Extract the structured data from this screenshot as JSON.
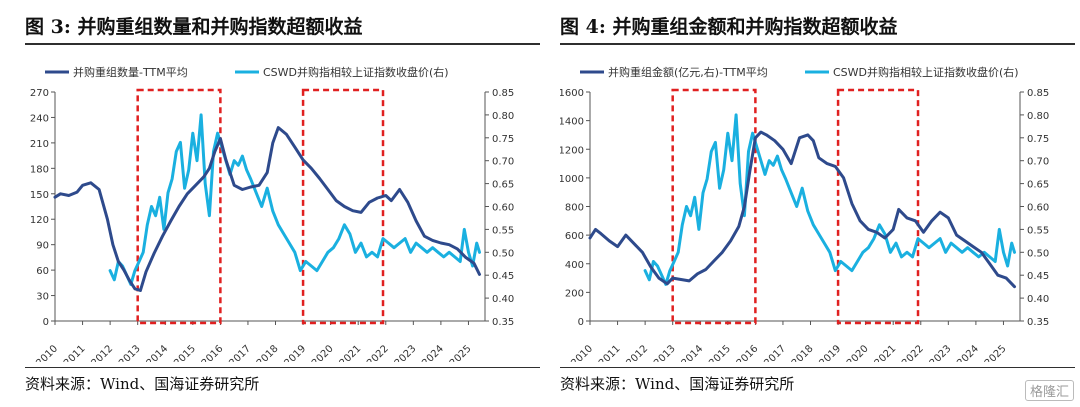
{
  "left": {
    "title": "图 3:  并购重组数量和并购指数超额收益",
    "source": "资料来源：Wind、国海证券研究所"
  },
  "right": {
    "title": "图 4:  并购重组金额和并购指数超额收益",
    "source": "资料来源：Wind、国海证券研究所"
  },
  "watermark": "格隆汇",
  "chart_data": [
    {
      "type": "line",
      "x_ticks": [
        "2010",
        "2011",
        "2012",
        "2013",
        "2014",
        "2015",
        "2016",
        "2017",
        "2018",
        "2019",
        "2020",
        "2021",
        "2022",
        "2023",
        "2024",
        "2025"
      ],
      "ylim": [
        0,
        270
      ],
      "yticks": [
        0,
        30,
        60,
        90,
        120,
        150,
        180,
        210,
        240,
        270
      ],
      "y2lim": [
        0.35,
        0.85
      ],
      "y2ticks": [
        "0.35",
        "0.40",
        "0.45",
        "0.50",
        "0.55",
        "0.60",
        "0.65",
        "0.70",
        "0.75",
        "0.80",
        "0.85"
      ],
      "legend_position": "top",
      "highlight_periods": [
        [
          2013.0,
          2016.0
        ],
        [
          2019.0,
          2021.9
        ]
      ],
      "series": [
        {
          "name": "并购重组数量-TTM平均",
          "axis": "left",
          "color": "#2e4a8c",
          "x": [
            2010,
            2010.2,
            2010.5,
            2010.8,
            2011,
            2011.3,
            2011.6,
            2011.9,
            2012.1,
            2012.3,
            2012.5,
            2012.7,
            2012.9,
            2013.1,
            2013.3,
            2013.6,
            2013.9,
            2014.2,
            2014.5,
            2014.8,
            2015.1,
            2015.4,
            2015.6,
            2015.8,
            2016.0,
            2016.2,
            2016.5,
            2016.8,
            2017.1,
            2017.4,
            2017.7,
            2017.9,
            2018.1,
            2018.4,
            2018.7,
            2019.0,
            2019.3,
            2019.6,
            2019.9,
            2020.2,
            2020.5,
            2020.8,
            2021.1,
            2021.4,
            2021.7,
            2022.0,
            2022.2,
            2022.5,
            2022.8,
            2023.1,
            2023.4,
            2023.7,
            2024.0,
            2024.3,
            2024.6,
            2024.9,
            2025.2,
            2025.4
          ],
          "y": [
            146,
            150,
            148,
            152,
            160,
            163,
            155,
            120,
            90,
            70,
            60,
            48,
            38,
            36,
            58,
            80,
            100,
            118,
            135,
            150,
            160,
            170,
            180,
            200,
            215,
            190,
            160,
            155,
            158,
            160,
            175,
            210,
            228,
            220,
            205,
            190,
            180,
            168,
            155,
            142,
            135,
            130,
            128,
            140,
            145,
            148,
            142,
            155,
            140,
            118,
            100,
            95,
            92,
            90,
            85,
            75,
            68,
            55
          ]
        },
        {
          "name": "CSWD并购指相较上证指数收盘价(右)",
          "axis": "right",
          "color": "#1ab0e0",
          "x": [
            2012.0,
            2012.15,
            2012.3,
            2012.45,
            2012.6,
            2012.75,
            2012.9,
            2013.05,
            2013.2,
            2013.35,
            2013.5,
            2013.65,
            2013.8,
            2013.95,
            2014.1,
            2014.25,
            2014.4,
            2014.55,
            2014.7,
            2014.85,
            2015.0,
            2015.15,
            2015.3,
            2015.45,
            2015.6,
            2015.75,
            2015.9,
            2016.05,
            2016.2,
            2016.35,
            2016.5,
            2016.65,
            2016.8,
            2016.95,
            2017.1,
            2017.3,
            2017.5,
            2017.7,
            2017.9,
            2018.1,
            2018.3,
            2018.5,
            2018.7,
            2018.9,
            2019.1,
            2019.3,
            2019.5,
            2019.7,
            2019.9,
            2020.1,
            2020.3,
            2020.5,
            2020.7,
            2020.9,
            2021.1,
            2021.3,
            2021.5,
            2021.7,
            2021.9,
            2022.1,
            2022.3,
            2022.5,
            2022.7,
            2022.9,
            2023.1,
            2023.3,
            2023.5,
            2023.7,
            2023.9,
            2024.1,
            2024.3,
            2024.5,
            2024.7,
            2024.85,
            2025.0,
            2025.15,
            2025.3,
            2025.4
          ],
          "y": [
            0.46,
            0.44,
            0.48,
            0.47,
            0.45,
            0.43,
            0.46,
            0.48,
            0.5,
            0.56,
            0.6,
            0.58,
            0.62,
            0.55,
            0.63,
            0.66,
            0.72,
            0.74,
            0.64,
            0.68,
            0.76,
            0.7,
            0.8,
            0.65,
            0.58,
            0.72,
            0.76,
            0.73,
            0.7,
            0.67,
            0.7,
            0.69,
            0.71,
            0.68,
            0.66,
            0.63,
            0.6,
            0.64,
            0.59,
            0.56,
            0.54,
            0.52,
            0.5,
            0.46,
            0.48,
            0.47,
            0.46,
            0.48,
            0.5,
            0.51,
            0.53,
            0.56,
            0.54,
            0.5,
            0.52,
            0.49,
            0.5,
            0.49,
            0.53,
            0.52,
            0.51,
            0.52,
            0.53,
            0.5,
            0.52,
            0.51,
            0.5,
            0.51,
            0.5,
            0.49,
            0.5,
            0.49,
            0.48,
            0.55,
            0.5,
            0.47,
            0.52,
            0.5
          ]
        }
      ]
    },
    {
      "type": "line",
      "x_ticks": [
        "2010",
        "2011",
        "2012",
        "2013",
        "2014",
        "2015",
        "2016",
        "2017",
        "2018",
        "2019",
        "2020",
        "2021",
        "2022",
        "2023",
        "2024",
        "2025"
      ],
      "ylim": [
        0,
        1600
      ],
      "yticks": [
        0,
        200,
        400,
        600,
        800,
        1000,
        1200,
        1400,
        1600
      ],
      "y2lim": [
        0.35,
        0.85
      ],
      "y2ticks": [
        "0.35",
        "0.40",
        "0.45",
        "0.50",
        "0.55",
        "0.60",
        "0.65",
        "0.70",
        "0.75",
        "0.80",
        "0.85"
      ],
      "legend_position": "top",
      "highlight_periods": [
        [
          2013.0,
          2016.0
        ],
        [
          2019.0,
          2021.9
        ]
      ],
      "series": [
        {
          "name": "并购重组金额(亿元,右)-TTM平均",
          "axis": "left",
          "color": "#2e4a8c",
          "x": [
            2010,
            2010.2,
            2010.4,
            2010.7,
            2011,
            2011.3,
            2011.6,
            2011.9,
            2012.2,
            2012.5,
            2012.8,
            2013.0,
            2013.3,
            2013.6,
            2013.9,
            2014.2,
            2014.5,
            2014.8,
            2015.1,
            2015.4,
            2015.6,
            2015.8,
            2016.0,
            2016.2,
            2016.4,
            2016.7,
            2017.0,
            2017.3,
            2017.6,
            2017.9,
            2018.1,
            2018.3,
            2018.6,
            2018.9,
            2019.2,
            2019.5,
            2019.8,
            2020.1,
            2020.4,
            2020.7,
            2021.0,
            2021.2,
            2021.5,
            2021.8,
            2022.1,
            2022.4,
            2022.7,
            2023.0,
            2023.3,
            2023.6,
            2023.9,
            2024.2,
            2024.5,
            2024.8,
            2025.1,
            2025.4
          ],
          "y": [
            580,
            640,
            610,
            560,
            520,
            600,
            540,
            480,
            380,
            300,
            260,
            300,
            290,
            280,
            330,
            360,
            420,
            480,
            560,
            660,
            800,
            1050,
            1280,
            1320,
            1300,
            1260,
            1200,
            1100,
            1280,
            1300,
            1260,
            1140,
            1100,
            1080,
            1000,
            820,
            700,
            640,
            620,
            580,
            640,
            780,
            720,
            700,
            620,
            700,
            760,
            720,
            600,
            560,
            520,
            480,
            400,
            320,
            300,
            240
          ]
        },
        {
          "name": "CSWD并购指相较上证指数收盘价(右)",
          "axis": "right",
          "color": "#1ab0e0",
          "x": [
            2012.0,
            2012.15,
            2012.3,
            2012.45,
            2012.6,
            2012.75,
            2012.9,
            2013.05,
            2013.2,
            2013.35,
            2013.5,
            2013.65,
            2013.8,
            2013.95,
            2014.1,
            2014.25,
            2014.4,
            2014.55,
            2014.7,
            2014.85,
            2015.0,
            2015.15,
            2015.3,
            2015.45,
            2015.6,
            2015.75,
            2015.9,
            2016.05,
            2016.2,
            2016.35,
            2016.5,
            2016.65,
            2016.8,
            2016.95,
            2017.1,
            2017.3,
            2017.5,
            2017.7,
            2017.9,
            2018.1,
            2018.3,
            2018.5,
            2018.7,
            2018.9,
            2019.1,
            2019.3,
            2019.5,
            2019.7,
            2019.9,
            2020.1,
            2020.3,
            2020.5,
            2020.7,
            2020.9,
            2021.1,
            2021.3,
            2021.5,
            2021.7,
            2021.9,
            2022.1,
            2022.3,
            2022.5,
            2022.7,
            2022.9,
            2023.1,
            2023.3,
            2023.5,
            2023.7,
            2023.9,
            2024.1,
            2024.3,
            2024.5,
            2024.7,
            2024.85,
            2025.0,
            2025.15,
            2025.3,
            2025.4
          ],
          "y": [
            0.46,
            0.44,
            0.48,
            0.47,
            0.45,
            0.43,
            0.46,
            0.48,
            0.5,
            0.56,
            0.6,
            0.58,
            0.62,
            0.55,
            0.63,
            0.66,
            0.72,
            0.74,
            0.64,
            0.68,
            0.76,
            0.7,
            0.8,
            0.65,
            0.58,
            0.72,
            0.76,
            0.73,
            0.7,
            0.67,
            0.7,
            0.69,
            0.71,
            0.68,
            0.66,
            0.63,
            0.6,
            0.64,
            0.59,
            0.56,
            0.54,
            0.52,
            0.5,
            0.46,
            0.48,
            0.47,
            0.46,
            0.48,
            0.5,
            0.51,
            0.53,
            0.56,
            0.54,
            0.5,
            0.52,
            0.49,
            0.5,
            0.49,
            0.53,
            0.52,
            0.51,
            0.52,
            0.53,
            0.5,
            0.52,
            0.51,
            0.5,
            0.51,
            0.5,
            0.49,
            0.5,
            0.49,
            0.48,
            0.55,
            0.5,
            0.47,
            0.52,
            0.5
          ]
        }
      ]
    }
  ]
}
